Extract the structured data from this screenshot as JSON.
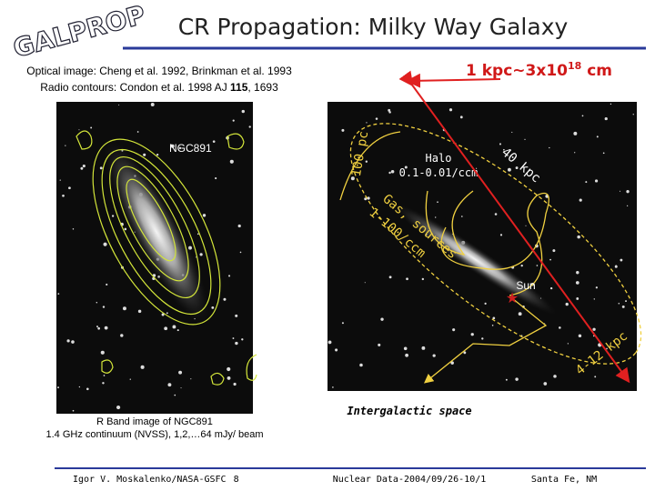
{
  "header": {
    "logo": "GALPROP",
    "title": "CR Propagation: Milky Way Galaxy"
  },
  "credits": {
    "optical": "Optical image: Cheng et al. 1992, Brinkman et al. 1993",
    "radio": [
      "Radio contours: Condon et al. 1998 AJ ",
      "115",
      ", 1693"
    ]
  },
  "scale": [
    "1 kpc~3x10",
    "18",
    " cm"
  ],
  "left_image": {
    "label": "NGC891",
    "caption": [
      "R Band image of NGC891",
      "1.4 GHz continuum (NVSS), 1,2,…64 mJy/ beam"
    ]
  },
  "right_image": {
    "disk_thickness": "100 pc",
    "halo": [
      "Halo",
      "0.1-0.01/ccm"
    ],
    "diameter": "40 kpc",
    "gas": [
      "Gas, sources",
      "1-100/ccm"
    ],
    "sun": "Sun",
    "halo_height": "4-12 kpc",
    "intergalactic": "Intergalactic space"
  },
  "footer": {
    "author": "Igor V. Moskalenko/NASA-GSFC",
    "page": "8",
    "meeting": "Nuclear Data-2004/09/26-10/1",
    "location": "Santa Fe, NM"
  }
}
